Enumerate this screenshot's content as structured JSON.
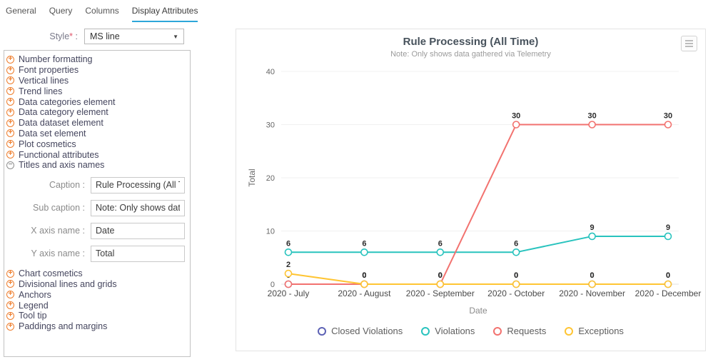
{
  "tabs": {
    "items": [
      "General",
      "Query",
      "Columns",
      "Display Attributes"
    ],
    "active": "Display Attributes"
  },
  "style_field": {
    "label": "Style",
    "required_mark": "*",
    "colon": " :",
    "value": "MS line"
  },
  "tree": {
    "items_top": [
      "Number formatting",
      "Font properties",
      "Vertical lines",
      "Trend lines",
      "Data categories element",
      "Data category element",
      "Data dataset element",
      "Data set element",
      "Plot cosmetics",
      "Functional attributes"
    ],
    "expanded_item": "Titles and axis names",
    "fields": [
      {
        "label": "Caption :",
        "value": "Rule Processing (All Time)"
      },
      {
        "label": "Sub caption :",
        "value": "Note: Only shows data gathered via Telemetry"
      },
      {
        "label": "X axis name :",
        "value": "Date"
      },
      {
        "label": "Y axis name :",
        "value": "Total"
      }
    ],
    "items_bottom": [
      "Chart cosmetics",
      "Divisional lines and grids",
      "Anchors",
      "Legend",
      "Tool tip",
      "Paddings and margins"
    ]
  },
  "chart_data": {
    "type": "line",
    "title": "Rule Processing (All Time)",
    "subtitle": "Note: Only shows data gathered via Telemetry",
    "xlabel": "Date",
    "ylabel": "Total",
    "ylim": [
      0,
      40
    ],
    "yticks": [
      0,
      10,
      20,
      30,
      40
    ],
    "grid": true,
    "legend_position": "bottom",
    "categories": [
      "2020 - July",
      "2020 - August",
      "2020 - September",
      "2020 - October",
      "2020 - November",
      "2020 - December"
    ],
    "series": [
      {
        "name": "Closed Violations",
        "color": "#5d62b5",
        "values": [
          0,
          0,
          0,
          0,
          0,
          0
        ]
      },
      {
        "name": "Violations",
        "color": "#29c3be",
        "values": [
          6,
          6,
          6,
          6,
          9,
          9
        ]
      },
      {
        "name": "Requests",
        "color": "#f2726f",
        "values": [
          0,
          0,
          0,
          30,
          30,
          30
        ]
      },
      {
        "name": "Exceptions",
        "color": "#ffc533",
        "values": [
          2,
          0,
          0,
          0,
          0,
          0
        ]
      }
    ],
    "menu_icon": "hamburger-menu-icon"
  }
}
